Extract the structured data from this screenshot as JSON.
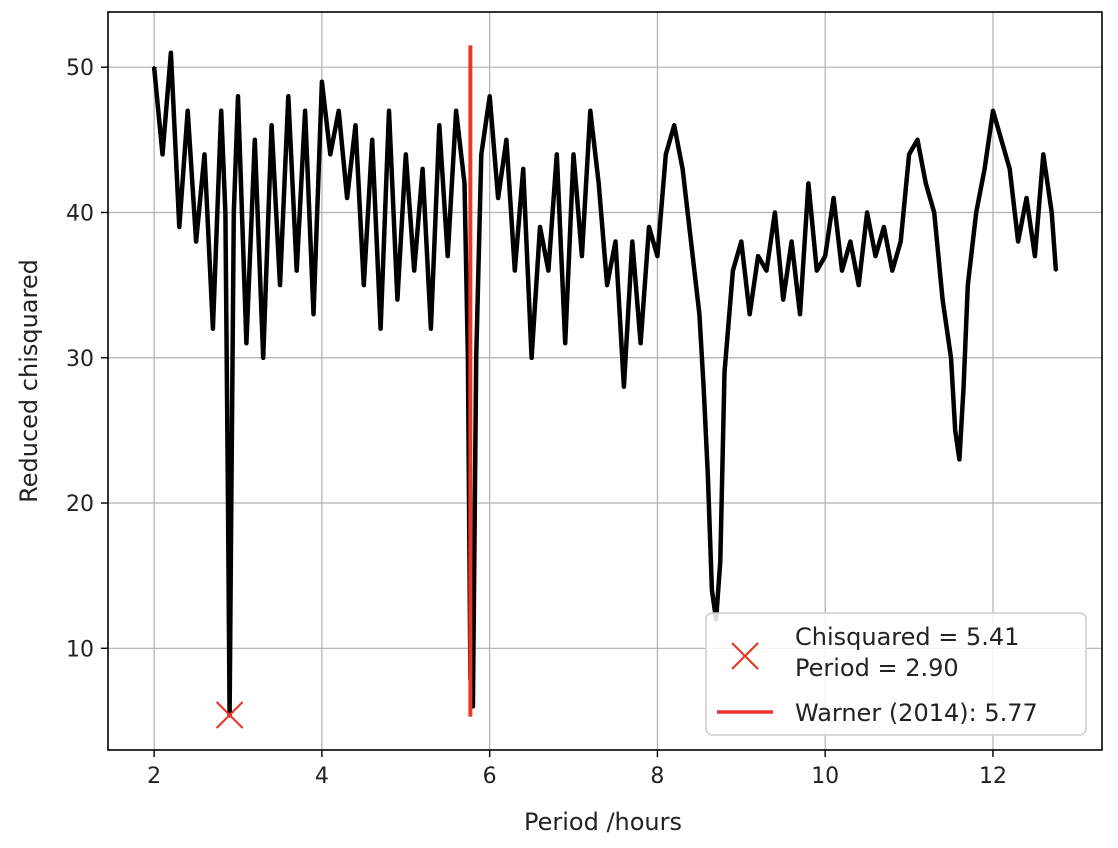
{
  "chart_data": {
    "type": "line",
    "xlabel": "Period /hours",
    "ylabel": "Reduced chisquared",
    "xlim": [
      1.45,
      13.3
    ],
    "ylim": [
      3.0,
      53.8
    ],
    "xticks": [
      2,
      4,
      6,
      8,
      10,
      12
    ],
    "yticks": [
      10,
      20,
      30,
      40,
      50
    ],
    "grid": true,
    "legend_position": "lower-right",
    "colors": {
      "curve": "#000000",
      "highlight": "#e8382c",
      "grid": "#b0b0b0"
    },
    "series": [
      {
        "x": [
          2.0,
          2.1,
          2.2,
          2.3,
          2.4,
          2.5,
          2.6,
          2.7,
          2.8,
          2.85,
          2.88,
          2.9,
          2.92,
          2.95,
          3.0,
          3.1,
          3.2,
          3.3,
          3.4,
          3.5,
          3.6,
          3.7,
          3.8,
          3.9,
          4.0,
          4.1,
          4.2,
          4.3,
          4.4,
          4.5,
          4.6,
          4.7,
          4.8,
          4.9,
          5.0,
          5.1,
          5.2,
          5.3,
          5.4,
          5.5,
          5.6,
          5.7,
          5.74,
          5.77,
          5.8,
          5.84,
          5.9,
          6.0,
          6.1,
          6.2,
          6.3,
          6.4,
          6.5,
          6.6,
          6.7,
          6.8,
          6.9,
          7.0,
          7.1,
          7.2,
          7.3,
          7.4,
          7.5,
          7.6,
          7.7,
          7.8,
          7.9,
          8.0,
          8.1,
          8.2,
          8.3,
          8.4,
          8.5,
          8.55,
          8.6,
          8.65,
          8.7,
          8.75,
          8.8,
          8.9,
          9.0,
          9.1,
          9.2,
          9.3,
          9.4,
          9.5,
          9.6,
          9.7,
          9.8,
          9.9,
          10.0,
          10.1,
          10.2,
          10.3,
          10.4,
          10.5,
          10.6,
          10.7,
          10.8,
          10.9,
          11.0,
          11.1,
          11.2,
          11.3,
          11.4,
          11.5,
          11.55,
          11.6,
          11.65,
          11.7,
          11.8,
          11.9,
          12.0,
          12.1,
          12.2,
          12.3,
          12.4,
          12.5,
          12.6,
          12.7,
          12.75
        ],
        "y": [
          50,
          44,
          51,
          39,
          47,
          38,
          44,
          32,
          47,
          40,
          20,
          5.4,
          20,
          40,
          48,
          31,
          45,
          30,
          46,
          35,
          48,
          36,
          47,
          33,
          49,
          44,
          47,
          41,
          46,
          35,
          45,
          32,
          47,
          34,
          44,
          36,
          43,
          32,
          46,
          37,
          47,
          42,
          30,
          8,
          6,
          30,
          44,
          48,
          41,
          45,
          36,
          43,
          30,
          39,
          36,
          44,
          31,
          44,
          37,
          47,
          42,
          35,
          38,
          28,
          38,
          31,
          39,
          37,
          44,
          46,
          43,
          38,
          33,
          28,
          22,
          14,
          12,
          16,
          29,
          36,
          38,
          33,
          37,
          36,
          40,
          34,
          38,
          33,
          42,
          36,
          37,
          41,
          36,
          38,
          35,
          40,
          37,
          39,
          36,
          38,
          44,
          45,
          42,
          40,
          34,
          30,
          25,
          23,
          28,
          35,
          40,
          43,
          47,
          45,
          43,
          38,
          41,
          37,
          44,
          40,
          36
        ]
      }
    ],
    "best_marker": {
      "x": 2.9,
      "y": 5.41
    },
    "reference_line": {
      "x": 5.77,
      "y_from": 5.3,
      "y_to": 51.5
    },
    "legend": [
      {
        "symbol": "x-marker",
        "lines": [
          "Chisquared = 5.41",
          "Period = 2.90"
        ]
      },
      {
        "symbol": "line",
        "lines": [
          "Warner (2014): 5.77"
        ]
      }
    ]
  }
}
